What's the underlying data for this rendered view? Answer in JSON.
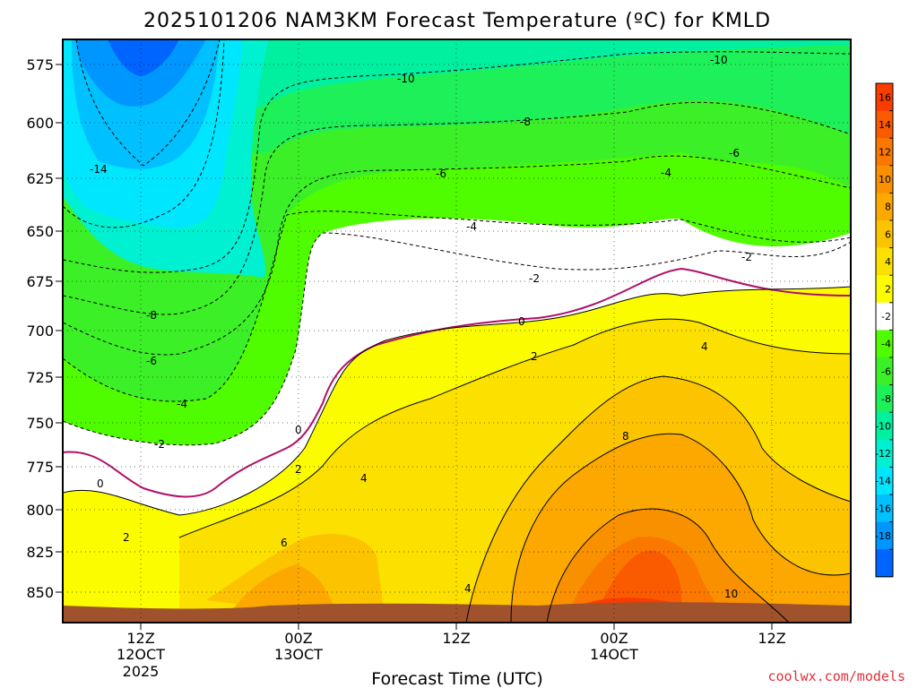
{
  "chart_data": {
    "type": "contour",
    "title": "2025101206 NAM3KM Forecast Temperature (ºC) for KMLD",
    "xlabel": "Forecast Time (UTC)",
    "ylabel": "",
    "y_ticks": [
      575,
      600,
      625,
      650,
      675,
      700,
      725,
      750,
      775,
      800,
      825,
      850
    ],
    "x_ticks": [
      {
        "label": "12Z",
        "line2": "12OCT",
        "line3": "2025"
      },
      {
        "label": "00Z",
        "line2": "13OCT",
        "line3": ""
      },
      {
        "label": "12Z",
        "line2": "",
        "line3": ""
      },
      {
        "label": "00Z",
        "line2": "14OCT",
        "line3": ""
      },
      {
        "label": "12Z",
        "line2": "",
        "line3": ""
      }
    ],
    "colorbar_levels": [
      16,
      14,
      12,
      10,
      8,
      6,
      4,
      2,
      -2,
      -4,
      -6,
      -8,
      -10,
      -12,
      -14,
      -16,
      -18
    ],
    "colorbar_colors": [
      "#fa3c00",
      "#fa5a00",
      "#fa7800",
      "#f89000",
      "#fca800",
      "#fcc400",
      "#fce000",
      "#fcfc00",
      "#ffffff",
      "#50fc00",
      "#3cf028",
      "#1ef05a",
      "#00f0a0",
      "#00f0d2",
      "#00e6ff",
      "#00c0ff",
      "#0096ff",
      "#0064ff"
    ],
    "contour_labels": [
      {
        "text": "-10",
        "pos": "upper-middle"
      },
      {
        "text": "-10",
        "pos": "upper-right"
      },
      {
        "text": "-8",
        "pos": "upper-middle"
      },
      {
        "text": "-6",
        "pos": "upper-middle"
      },
      {
        "text": "-6",
        "pos": "upper-right"
      },
      {
        "text": "-4",
        "pos": "middle"
      },
      {
        "text": "-4",
        "pos": "upper-right"
      },
      {
        "text": "-2",
        "pos": "middle"
      },
      {
        "text": "-2",
        "pos": "right"
      },
      {
        "text": "-14",
        "pos": "upper-left"
      },
      {
        "text": "-8",
        "pos": "left"
      },
      {
        "text": "-6",
        "pos": "left"
      },
      {
        "text": "-4",
        "pos": "left"
      },
      {
        "text": "-2",
        "pos": "left"
      },
      {
        "text": "0",
        "pos": "left"
      },
      {
        "text": "0",
        "pos": "middle-left"
      },
      {
        "text": "0",
        "pos": "middle"
      },
      {
        "text": "2",
        "pos": "middle-left"
      },
      {
        "text": "2",
        "pos": "middle"
      },
      {
        "text": "2",
        "pos": "lower-left"
      },
      {
        "text": "4",
        "pos": "middle"
      },
      {
        "text": "4",
        "pos": "right"
      },
      {
        "text": "4",
        "pos": "lower-middle"
      },
      {
        "text": "6",
        "pos": "lower-left"
      },
      {
        "text": "8",
        "pos": "lower-right"
      },
      {
        "text": "10",
        "pos": "lower-right"
      }
    ]
  },
  "credit": "coolwx.com/models",
  "colors": {
    "frame": "#000000",
    "ground": "#a0522d",
    "zero_line": "#b0106a"
  }
}
